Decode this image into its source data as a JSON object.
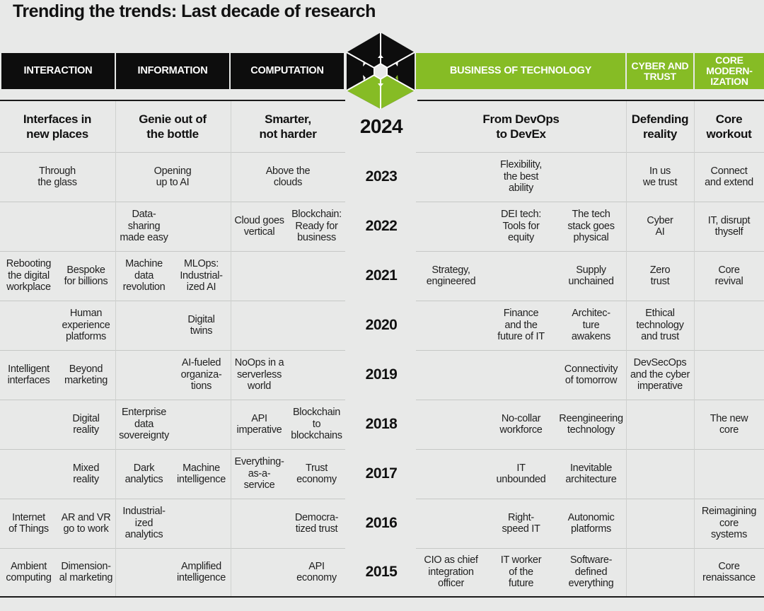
{
  "title": "Trending the trends: Last decade of research",
  "colors": {
    "accent": "#86bc25",
    "dark": "#0d0d0d",
    "background": "#e8e9e8"
  },
  "logo_icon": "cube-hexagon-icon",
  "headers": {
    "interaction": "INTERACTION",
    "information": "INFORMATION",
    "computation": "COMPUTATION",
    "business": "BUSINESS OF TECHNOLOGY",
    "cyber": "CYBER AND\nTRUST",
    "core": "CORE\nMODERN-\nIZATION"
  },
  "rows": [
    {
      "year": "2024",
      "interaction": [
        "Interfaces in\nnew places"
      ],
      "information": [
        "Genie out of\nthe bottle"
      ],
      "computation": [
        "Smarter,\nnot harder"
      ],
      "business": [
        "From DevOps\nto DevEx"
      ],
      "cyber": [
        "Defending\nreality"
      ],
      "core": [
        "Core\nworkout"
      ]
    },
    {
      "year": "2023",
      "interaction": [
        "Through\nthe glass"
      ],
      "information": [
        "Opening\nup to AI"
      ],
      "computation": [
        "Above the\nclouds"
      ],
      "business": [
        "Flexibility,\nthe best\nability"
      ],
      "cyber": [
        "In us\nwe trust"
      ],
      "core": [
        "Connect\nand extend"
      ]
    },
    {
      "year": "2022",
      "interaction": [
        "",
        ""
      ],
      "information": [
        "Data-\nsharing\nmade easy",
        ""
      ],
      "computation": [
        "Cloud goes\nvertical",
        "Blockchain:\nReady for\nbusiness"
      ],
      "business": [
        "",
        "DEI tech:\nTools for\nequity",
        "The tech\nstack goes\nphysical"
      ],
      "cyber": [
        "Cyber\nAI"
      ],
      "core": [
        "IT, disrupt\nthyself"
      ]
    },
    {
      "year": "2021",
      "interaction": [
        "Rebooting\nthe digital\nworkplace",
        "Bespoke\nfor billions"
      ],
      "information": [
        "Machine\ndata\nrevolution",
        "MLOps:\nIndustrial-\nized AI"
      ],
      "computation": [
        "",
        ""
      ],
      "business": [
        "Strategy,\nengineered",
        "",
        "Supply\nunchained"
      ],
      "cyber": [
        "Zero\ntrust"
      ],
      "core": [
        "Core\nrevival"
      ]
    },
    {
      "year": "2020",
      "interaction": [
        "",
        "Human\nexperience\nplatforms"
      ],
      "information": [
        "",
        "Digital\ntwins"
      ],
      "computation": [
        "",
        ""
      ],
      "business": [
        "",
        "Finance\nand the\nfuture of IT",
        "Architec-\nture\nawakens"
      ],
      "cyber": [
        "Ethical\ntechnology\nand trust"
      ],
      "core": [
        ""
      ]
    },
    {
      "year": "2019",
      "interaction": [
        "Intelligent\ninterfaces",
        "Beyond\nmarketing"
      ],
      "information": [
        "",
        "AI-fueled\norganiza-\ntions"
      ],
      "computation": [
        "NoOps in a\nserverless\nworld",
        ""
      ],
      "business": [
        "",
        "",
        "Connectivity\nof tomorrow"
      ],
      "cyber": [
        "DevSecOps\nand the cyber\nimperative"
      ],
      "core": [
        ""
      ]
    },
    {
      "year": "2018",
      "interaction": [
        "",
        "Digital\nreality"
      ],
      "information": [
        "Enterprise\ndata\nsovereignty",
        ""
      ],
      "computation": [
        "API\nimperative",
        "Blockchain\nto\nblockchains"
      ],
      "business": [
        "",
        "No-collar\nworkforce",
        "Reengineering\ntechnology"
      ],
      "cyber": [
        ""
      ],
      "core": [
        "The new\ncore"
      ]
    },
    {
      "year": "2017",
      "interaction": [
        "",
        "Mixed\nreality"
      ],
      "information": [
        "Dark\nanalytics",
        "Machine\nintelligence"
      ],
      "computation": [
        "Everything-\nas-a-\nservice",
        "Trust\neconomy"
      ],
      "business": [
        "",
        "IT\nunbounded",
        "Inevitable\narchitecture"
      ],
      "cyber": [
        ""
      ],
      "core": [
        ""
      ]
    },
    {
      "year": "2016",
      "interaction": [
        "Internet\nof Things",
        "AR and VR\ngo to work"
      ],
      "information": [
        "Industrial-\nized\nanalytics",
        ""
      ],
      "computation": [
        "",
        "Democra-\ntized trust"
      ],
      "business": [
        "",
        "Right-\nspeed IT",
        "Autonomic\nplatforms"
      ],
      "cyber": [
        ""
      ],
      "core": [
        "Reimagining\ncore\nsystems"
      ]
    },
    {
      "year": "2015",
      "interaction": [
        "Ambient\ncomputing",
        "Dimension-\nal marketing"
      ],
      "information": [
        "",
        "Amplified\nintelligence"
      ],
      "computation": [
        "",
        "API\neconomy"
      ],
      "business": [
        "CIO as chief\nintegration\nofficer",
        "IT worker\nof the\nfuture",
        "Software-\ndefined\neverything"
      ],
      "cyber": [
        ""
      ],
      "core": [
        "Core\nrenaissance"
      ]
    }
  ]
}
